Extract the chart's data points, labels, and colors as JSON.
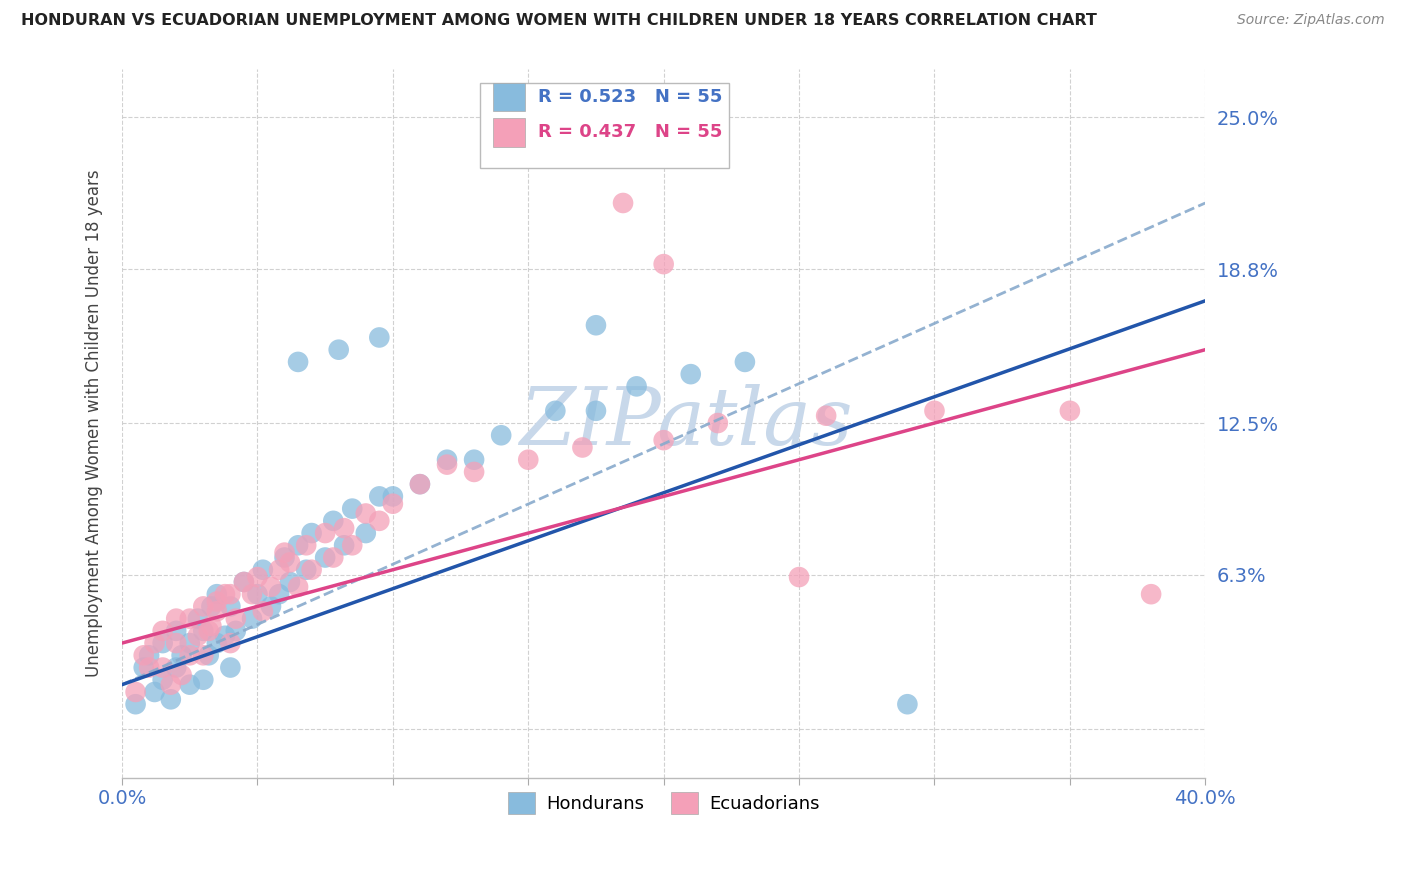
{
  "title": "HONDURAN VS ECUADORIAN UNEMPLOYMENT AMONG WOMEN WITH CHILDREN UNDER 18 YEARS CORRELATION CHART",
  "source": "Source: ZipAtlas.com",
  "ylabel": "Unemployment Among Women with Children Under 18 years",
  "legend_blue_r": "R = 0.523",
  "legend_blue_n": "N = 55",
  "legend_pink_r": "R = 0.437",
  "legend_pink_n": "N = 55",
  "legend_blue_label": "Hondurans",
  "legend_pink_label": "Ecuadorians",
  "xlim": [
    0.0,
    0.4
  ],
  "ylim": [
    -0.02,
    0.27
  ],
  "yticks": [
    0.0,
    0.063,
    0.125,
    0.188,
    0.25
  ],
  "ytick_labels": [
    "",
    "6.3%",
    "12.5%",
    "18.8%",
    "25.0%"
  ],
  "blue_color": "#88bbdd",
  "pink_color": "#f4a0b8",
  "blue_line_color": "#2255aa",
  "pink_line_color": "#dd4488",
  "blue_dash_color": "#99bbdd",
  "watermark_text": "ZIPatlas",
  "watermark_color": "#c8d8ea",
  "background_color": "#ffffff",
  "grid_color": "#cccccc",
  "blue_scatter_x": [
    0.005,
    0.008,
    0.01,
    0.012,
    0.015,
    0.015,
    0.018,
    0.02,
    0.02,
    0.022,
    0.025,
    0.025,
    0.028,
    0.03,
    0.03,
    0.032,
    0.033,
    0.035,
    0.035,
    0.038,
    0.04,
    0.04,
    0.042,
    0.045,
    0.048,
    0.05,
    0.052,
    0.055,
    0.058,
    0.06,
    0.062,
    0.065,
    0.068,
    0.07,
    0.075,
    0.078,
    0.082,
    0.085,
    0.09,
    0.095,
    0.1,
    0.11,
    0.12,
    0.13,
    0.14,
    0.16,
    0.175,
    0.19,
    0.21,
    0.23,
    0.065,
    0.08,
    0.095,
    0.175,
    0.29
  ],
  "blue_scatter_y": [
    0.01,
    0.025,
    0.03,
    0.015,
    0.02,
    0.035,
    0.012,
    0.025,
    0.04,
    0.03,
    0.018,
    0.035,
    0.045,
    0.02,
    0.04,
    0.03,
    0.05,
    0.035,
    0.055,
    0.038,
    0.025,
    0.05,
    0.04,
    0.06,
    0.045,
    0.055,
    0.065,
    0.05,
    0.055,
    0.07,
    0.06,
    0.075,
    0.065,
    0.08,
    0.07,
    0.085,
    0.075,
    0.09,
    0.08,
    0.095,
    0.095,
    0.1,
    0.11,
    0.11,
    0.12,
    0.13,
    0.13,
    0.14,
    0.145,
    0.15,
    0.15,
    0.155,
    0.16,
    0.165,
    0.01
  ],
  "pink_scatter_x": [
    0.005,
    0.008,
    0.01,
    0.012,
    0.015,
    0.015,
    0.018,
    0.02,
    0.02,
    0.022,
    0.025,
    0.025,
    0.028,
    0.03,
    0.03,
    0.032,
    0.033,
    0.035,
    0.035,
    0.038,
    0.04,
    0.04,
    0.042,
    0.045,
    0.048,
    0.05,
    0.052,
    0.055,
    0.058,
    0.06,
    0.062,
    0.065,
    0.068,
    0.07,
    0.075,
    0.078,
    0.082,
    0.085,
    0.09,
    0.095,
    0.1,
    0.11,
    0.12,
    0.13,
    0.15,
    0.17,
    0.2,
    0.22,
    0.26,
    0.3,
    0.185,
    0.2,
    0.35,
    0.38,
    0.25
  ],
  "pink_scatter_y": [
    0.015,
    0.03,
    0.025,
    0.035,
    0.025,
    0.04,
    0.018,
    0.035,
    0.045,
    0.022,
    0.03,
    0.045,
    0.038,
    0.03,
    0.05,
    0.04,
    0.042,
    0.048,
    0.052,
    0.055,
    0.035,
    0.055,
    0.045,
    0.06,
    0.055,
    0.062,
    0.048,
    0.058,
    0.065,
    0.072,
    0.068,
    0.058,
    0.075,
    0.065,
    0.08,
    0.07,
    0.082,
    0.075,
    0.088,
    0.085,
    0.092,
    0.1,
    0.108,
    0.105,
    0.11,
    0.115,
    0.118,
    0.125,
    0.128,
    0.13,
    0.215,
    0.19,
    0.13,
    0.055,
    0.062
  ]
}
